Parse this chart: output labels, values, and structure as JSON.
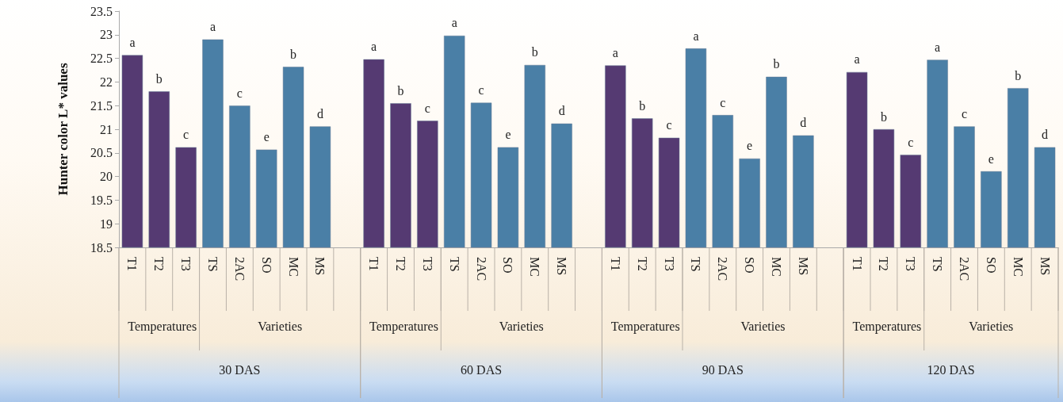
{
  "chart_data": {
    "type": "bar",
    "ylabel": "Hunter color L* values",
    "categories": [
      "T1",
      "T2",
      "T3",
      "TS",
      "2AC",
      "SO",
      "MC",
      "MS",
      null,
      "T1",
      "T2",
      "T3",
      "TS",
      "2AC",
      "SO",
      "MC",
      "MS",
      null,
      "T1",
      "T2",
      "T3",
      "TS",
      "2AC",
      "SO",
      "MC",
      "MS",
      null,
      "T1",
      "T2",
      "T3",
      "TS",
      "2AC",
      "SO",
      "MC",
      "MS"
    ],
    "values": [
      22.57,
      21.8,
      20.62,
      22.9,
      21.5,
      20.57,
      22.32,
      21.06,
      null,
      22.48,
      21.55,
      21.18,
      22.98,
      21.56,
      20.62,
      22.36,
      21.12,
      null,
      22.35,
      21.23,
      20.82,
      22.71,
      21.3,
      20.38,
      22.11,
      20.87,
      null,
      22.21,
      21.0,
      20.46,
      22.47,
      21.06,
      20.11,
      21.87,
      20.62
    ],
    "value_labels": [
      "a",
      "b",
      "c",
      "a",
      "c",
      "e",
      "b",
      "d",
      null,
      "a",
      "b",
      "c",
      "a",
      "c",
      "e",
      "b",
      "d",
      null,
      "a",
      "b",
      "c",
      "a",
      "c",
      "e",
      "b",
      "d",
      null,
      "a",
      "b",
      "c",
      "a",
      "c",
      "e",
      "b",
      "d"
    ],
    "colors": [
      "#553a72",
      "#553a72",
      "#553a72",
      "#4a7fa6",
      "#4a7fa6",
      "#4a7fa6",
      "#4a7fa6",
      "#4a7fa6",
      null,
      "#553a72",
      "#553a72",
      "#553a72",
      "#4a7fa6",
      "#4a7fa6",
      "#4a7fa6",
      "#4a7fa6",
      "#4a7fa6",
      null,
      "#553a72",
      "#553a72",
      "#553a72",
      "#4a7fa6",
      "#4a7fa6",
      "#4a7fa6",
      "#4a7fa6",
      "#4a7fa6",
      null,
      "#553a72",
      "#553a72",
      "#553a72",
      "#4a7fa6",
      "#4a7fa6",
      "#4a7fa6",
      "#4a7fa6",
      "#4a7fa6"
    ],
    "ylim": [
      18.5,
      23.5
    ],
    "yticks": [
      18.5,
      19,
      19.5,
      20,
      20.5,
      21,
      21.5,
      22,
      22.5,
      23,
      23.5
    ],
    "annotations": [
      "Temperatures",
      "Varieties",
      "30 DAS",
      "Temperatures",
      "Varieties",
      "60 DAS",
      "Temperatures",
      "Varieties",
      "90 DAS",
      "Temperatures",
      "Varieties",
      "120 DAS"
    ]
  }
}
